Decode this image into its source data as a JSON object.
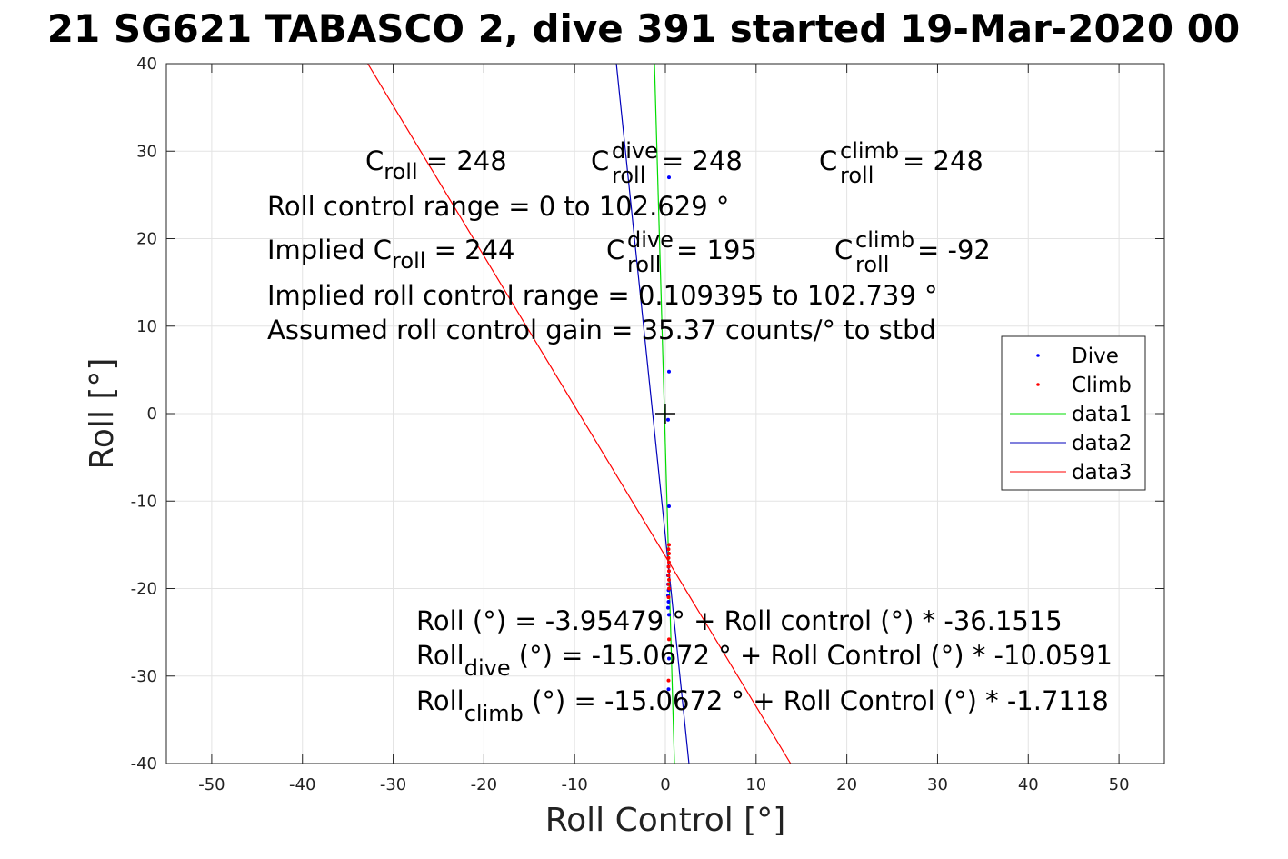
{
  "chart_data": {
    "type": "scatter",
    "title": "21 SG621 TABASCO 2, dive 391 started 19-Mar-2020 00",
    "xlabel": "Roll Control [°]",
    "ylabel": "Roll [°]",
    "xlim": [
      -55,
      55
    ],
    "ylim": [
      -40,
      40
    ],
    "xticks": [
      -50,
      -40,
      -30,
      -20,
      -10,
      0,
      10,
      20,
      30,
      40,
      50
    ],
    "yticks": [
      -40,
      -30,
      -20,
      -10,
      0,
      10,
      20,
      30,
      40
    ],
    "xtick_labels": [
      "-50",
      "-40",
      "-30",
      "-20",
      "-10",
      "0",
      "10",
      "20",
      "30",
      "40",
      "50"
    ],
    "ytick_labels": [
      "-40",
      "-30",
      "-20",
      "-10",
      "0",
      "10",
      "20",
      "30",
      "40"
    ],
    "grid": true,
    "legend_position": "right",
    "series": [
      {
        "name": "Dive",
        "kind": "points",
        "color": "#0000ff",
        "x": [
          0.4,
          0.4,
          0.3,
          0.4,
          0.35,
          0.3,
          0.3,
          0.35,
          0.3,
          0.35,
          0.3,
          0.4,
          0.4,
          0.35
        ],
        "y": [
          27.0,
          4.8,
          -0.7,
          -10.6,
          -17.5,
          -18.5,
          -19.5,
          -20.2,
          -20.8,
          -21.5,
          -22.2,
          -23.0,
          -28.0,
          -31.5
        ]
      },
      {
        "name": "Climb",
        "kind": "points",
        "color": "#ff0000",
        "x": [
          0.4,
          0.35,
          0.4,
          0.35,
          0.4,
          0.35,
          0.4,
          0.35,
          0.4,
          0.35,
          0.4,
          0.35,
          0.4,
          0.35
        ],
        "y": [
          -15.0,
          -15.5,
          -16.0,
          -16.5,
          -17.0,
          -17.5,
          -18.0,
          -18.5,
          -19.0,
          -19.5,
          -20.0,
          -21.0,
          -25.8,
          -30.5
        ]
      },
      {
        "name": "data1",
        "kind": "line",
        "color": "#00dd00",
        "x": [
          -1.2,
          1.0
        ],
        "y": [
          40,
          -40
        ]
      },
      {
        "name": "data2",
        "kind": "line",
        "color": "#0000bb",
        "x": [
          -5.4,
          2.6
        ],
        "y": [
          40,
          -40
        ]
      },
      {
        "name": "data3",
        "kind": "line",
        "color": "#ff0000",
        "x": [
          -32.8,
          13.8
        ],
        "y": [
          40,
          -40
        ]
      }
    ],
    "marker": {
      "x": 0,
      "y": 0,
      "symbol": "+"
    },
    "annotations": {
      "c_roll": {
        "base": "C",
        "sub": "roll",
        "value": " =  248"
      },
      "c_roll_dive": {
        "base": "C",
        "sup": "dive",
        "sub": "roll",
        "value": " =  248"
      },
      "c_roll_climb": {
        "base": "C",
        "sup": "climb",
        "sub": "roll",
        "value": " =  248"
      },
      "roll_range": "Roll control range = 0 to 102.629 °",
      "implied_prefix": "Implied C",
      "implied_sub": "roll",
      "implied_value": " =  244",
      "implied_dive": {
        "base": "C",
        "sup": "dive",
        "sub": "roll",
        "value": " =  195"
      },
      "implied_climb": {
        "base": "C",
        "sup": "climb",
        "sub": "roll",
        "value": " =  -92"
      },
      "implied_range": "Implied roll control range = 0.109395 to 102.739 °",
      "gain": "Assumed roll control gain = 35.37 counts/° to stbd",
      "fit_all": "Roll (°) = -3.95479 ° + Roll control (°) * -36.1515",
      "fit_dive_base": "Roll",
      "fit_dive_sub": "dive",
      "fit_dive_rest": " (°) = -15.0672 ° + Roll Control (°) * -10.0591",
      "fit_climb_base": "Roll",
      "fit_climb_sub": "climb",
      "fit_climb_rest": " (°) = -15.0672 ° + Roll Control (°) * -1.7118"
    }
  }
}
